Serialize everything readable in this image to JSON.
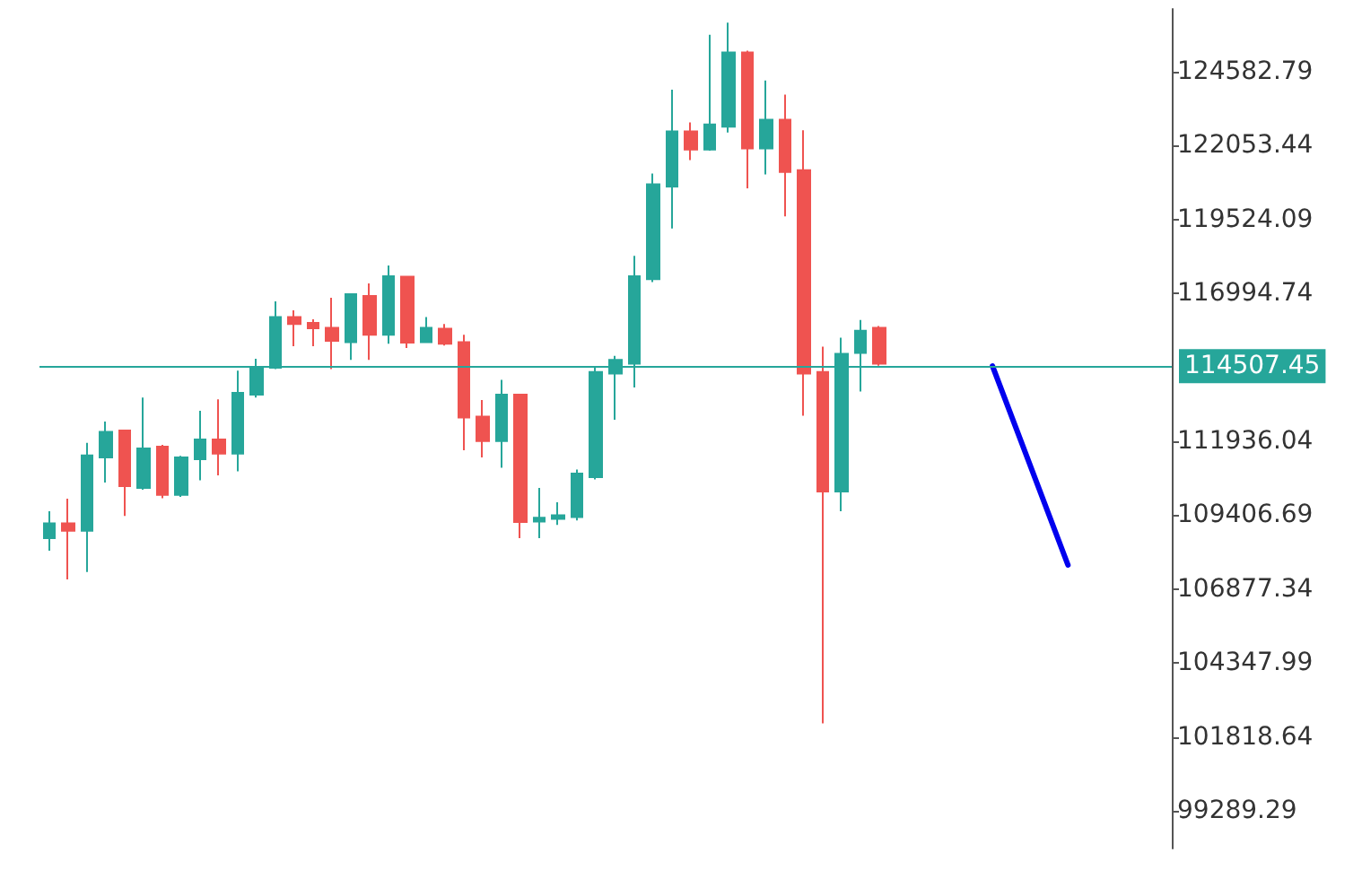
{
  "chart_data": {
    "type": "candlestick",
    "categories": [
      null,
      null,
      null,
      null,
      null,
      null,
      null,
      null,
      null,
      null,
      null,
      null,
      null,
      null,
      null,
      null,
      null,
      null,
      null,
      null,
      null,
      null,
      null,
      null,
      null,
      null,
      null,
      null,
      null,
      null,
      null,
      null,
      null,
      null,
      null,
      null,
      null,
      null,
      null,
      null,
      null,
      null,
      null,
      null,
      null,
      null,
      null,
      null,
      null,
      null,
      null,
      null,
      null,
      null,
      null,
      null,
      null,
      null,
      null,
      null
    ],
    "series": [
      {
        "ohlc": [
          [
            108620,
            109540,
            108190,
            109130
          ],
          [
            109130,
            109970,
            107210,
            108870
          ],
          [
            108870,
            111880,
            107460,
            111450
          ],
          [
            111380,
            112610,
            110520,
            112260
          ],
          [
            112300,
            112300,
            109380,
            110400
          ],
          [
            110340,
            113430,
            110280,
            111690
          ],
          [
            111750,
            111810,
            109990,
            110100
          ],
          [
            110100,
            111440,
            110030,
            111380
          ],
          [
            111320,
            112980,
            110600,
            112000
          ],
          [
            112000,
            113370,
            110770,
            111510
          ],
          [
            111510,
            114350,
            110910,
            113590
          ],
          [
            113530,
            114760,
            113430,
            114450
          ],
          [
            114450,
            116720,
            114410,
            116190
          ],
          [
            116190,
            116420,
            115190,
            115950
          ],
          [
            115990,
            116110,
            115190,
            115800
          ],
          [
            115820,
            116850,
            114410,
            115370
          ],
          [
            115330,
            116970,
            114720,
            116970
          ],
          [
            116910,
            117340,
            114720,
            115580
          ],
          [
            115580,
            117950,
            115270,
            117580
          ],
          [
            117570,
            117580,
            115130,
            115310
          ],
          [
            115330,
            116190,
            115330,
            115820
          ],
          [
            115790,
            115950,
            115210,
            115270
          ],
          [
            115330,
            115580,
            111630,
            112750
          ],
          [
            112780,
            113350,
            111380,
            111940
          ],
          [
            111940,
            114040,
            111030,
            113530
          ],
          [
            113530,
            113530,
            108620,
            109170
          ],
          [
            109190,
            110340,
            108620,
            109320
          ],
          [
            109280,
            109850,
            109070,
            109400
          ],
          [
            109340,
            110970,
            109230,
            110830
          ],
          [
            110710,
            114450,
            110630,
            114310
          ],
          [
            114250,
            114860,
            112670,
            114720
          ],
          [
            114590,
            118280,
            113780,
            117580
          ],
          [
            117480,
            121100,
            117380,
            120730
          ],
          [
            120650,
            123970,
            119220,
            122540
          ],
          [
            122540,
            122850,
            121560,
            121920
          ],
          [
            121920,
            125850,
            121880,
            122780
          ],
          [
            122700,
            126260,
            122500,
            125240
          ],
          [
            125240,
            125300,
            120590,
            121960
          ],
          [
            121960,
            124280,
            121070,
            122940
          ],
          [
            122940,
            123800,
            119630,
            121150
          ],
          [
            121210,
            122580,
            112810,
            114250
          ],
          [
            114310,
            115170,
            102280,
            110220
          ],
          [
            110220,
            115480,
            109540,
            114930
          ],
          [
            114960,
            116090,
            113640,
            115720
          ],
          [
            115820,
            115880,
            114520,
            114590
          ],
          null,
          null,
          null,
          null,
          null,
          null,
          null,
          null,
          null,
          null,
          null,
          null,
          null,
          null,
          null
        ],
        "colors": [
          "#26a69a",
          "#ef5350",
          "#26a69a",
          "#26a69a",
          "#ef5350",
          "#26a69a",
          "#ef5350",
          "#26a69a",
          "#26a69a",
          "#ef5350",
          "#26a69a",
          "#26a69a",
          "#26a69a",
          "#ef5350",
          "#ef5350",
          "#ef5350",
          "#26a69a",
          "#ef5350",
          "#26a69a",
          "#ef5350",
          "#26a69a",
          "#ef5350",
          "#ef5350",
          "#ef5350",
          "#26a69a",
          "#ef5350",
          "#26a69a",
          "#26a69a",
          "#26a69a",
          "#26a69a",
          "#26a69a",
          "#26a69a",
          "#26a69a",
          "#26a69a",
          "#ef5350",
          "#26a69a",
          "#26a69a",
          "#ef5350",
          "#26a69a",
          "#ef5350",
          "#ef5350",
          "#ef5350",
          "#26a69a",
          "#26a69a",
          "#ef5350",
          null,
          null,
          null,
          null,
          null,
          null,
          null,
          null,
          null,
          null,
          null,
          null,
          null,
          null,
          null
        ]
      },
      {
        "type": "line",
        "color": "#0000ee",
        "marker": "none",
        "values": [
          null,
          null,
          null,
          null,
          null,
          null,
          null,
          null,
          null,
          null,
          null,
          null,
          null,
          null,
          null,
          null,
          null,
          null,
          null,
          null,
          null,
          null,
          null,
          null,
          null,
          null,
          null,
          null,
          null,
          null,
          null,
          null,
          null,
          null,
          null,
          null,
          null,
          null,
          null,
          null,
          null,
          null,
          null,
          null,
          null,
          null,
          null,
          null,
          null,
          null,
          114510,
          null,
          null,
          null,
          107700,
          null,
          null,
          null,
          null,
          null
        ]
      }
    ],
    "ylim": [
      98000,
      126730
    ],
    "yticks": [
      99289.29,
      101818.64,
      104347.99,
      106877.34,
      109406.69,
      111936.04,
      114507.45,
      116994.74,
      119524.09,
      122053.44,
      124582.79
    ],
    "ref_lines": [
      {
        "axis": "y",
        "value": 114507.45,
        "label": "114507.45",
        "color": "#26a69a"
      }
    ],
    "tick_labels": "y"
  }
}
